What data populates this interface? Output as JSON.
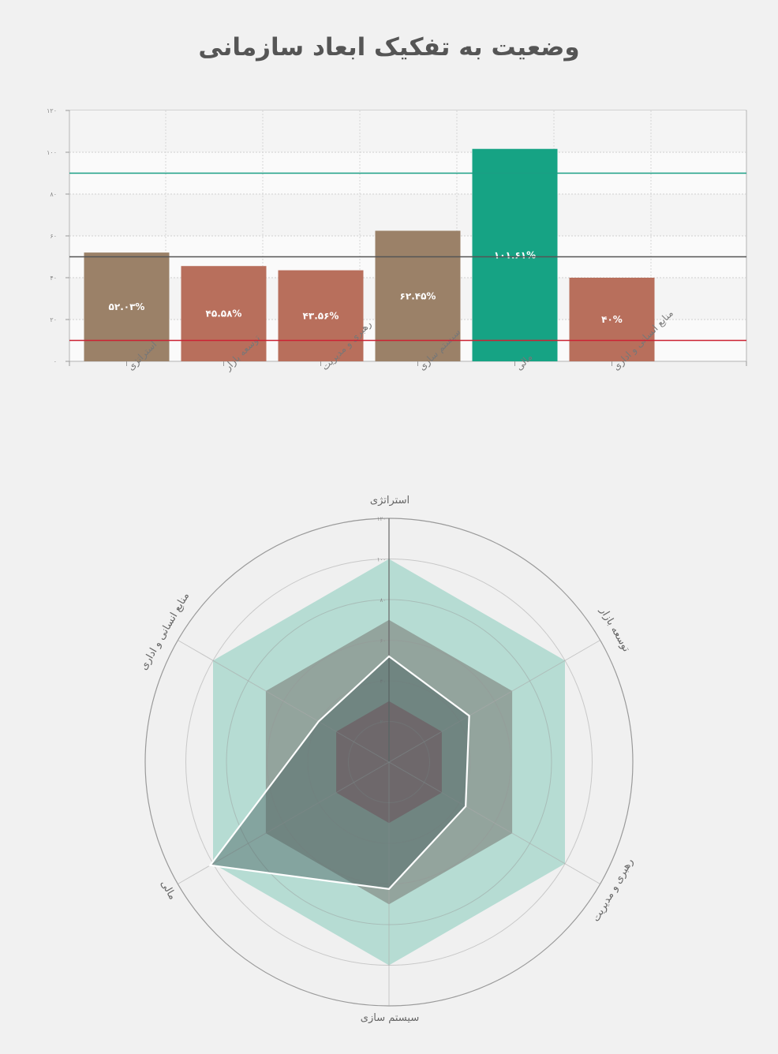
{
  "title": "وضعیت به تفکیک ابعاد سازمانی",
  "colors": {
    "background": "#f1f1f1",
    "plot_background": "#fafafa",
    "bar_brown": "#9b8168",
    "bar_red": "#b86f5c",
    "bar_green": "#16a384",
    "line_green": "#1a9e84",
    "line_dark": "#555555",
    "line_red": "#cc2233",
    "radar_outer": "#b6dcd3",
    "radar_middle": "#93a49d",
    "radar_inner": "#8e7076",
    "radar_series_fill": "#56706d",
    "radar_series_line": "#ffffff"
  },
  "chart_data": [
    {
      "type": "bar",
      "categories": [
        "استراتژی",
        "توسعه بازار",
        "رهبری و مدیریت",
        "سیستم سازی",
        "مالی",
        "منابع انسانی و اداری"
      ],
      "values": [
        52.03,
        45.58,
        43.56,
        62.45,
        101.61,
        40
      ],
      "value_labels": [
        "۵۲.۰۳%",
        "۴۵.۵۸%",
        "۴۳.۵۶%",
        "۶۲.۴۵%",
        "۱۰۱.۶۱%",
        "۴۰%"
      ],
      "bar_colors": [
        "#9b8168",
        "#b86f5c",
        "#b86f5c",
        "#9b8168",
        "#16a384",
        "#b86f5c"
      ],
      "ylim": [
        0,
        120
      ],
      "y_ticks": [
        0,
        20,
        40,
        60,
        80,
        100,
        120
      ],
      "y_tick_labels": [
        "۰",
        "۲۰",
        "۴۰",
        "۶۰",
        "۸۰",
        "۱۰۰",
        "۱۲۰"
      ],
      "reference_lines": [
        {
          "value": 90,
          "color": "#1a9e84"
        },
        {
          "value": 50,
          "color": "#555555"
        },
        {
          "value": 10,
          "color": "#cc2233"
        }
      ],
      "grid": true,
      "xlabel": "",
      "ylabel": ""
    },
    {
      "type": "radar",
      "categories": [
        "استراتژی",
        "توسعه بازار",
        "رهبری و مدیریت",
        "سیستم سازی",
        "مالی",
        "منابع انسانی و اداری"
      ],
      "values": [
        52.03,
        45.58,
        43.56,
        62.45,
        101.61,
        40
      ],
      "bands": [
        {
          "value": 100,
          "color": "#b6dcd3"
        },
        {
          "value": 70,
          "color": "#93a49d"
        },
        {
          "value": 30,
          "color": "#8e7076"
        }
      ],
      "rlim": [
        0,
        120
      ],
      "r_ticks": [
        0,
        20,
        40,
        60,
        80,
        100,
        120
      ],
      "r_tick_labels": [
        "۰",
        "۲۰",
        "۴۰",
        "۶۰",
        "۸۰",
        "۱۰۰",
        "۱۲۰"
      ],
      "grid": true
    }
  ]
}
